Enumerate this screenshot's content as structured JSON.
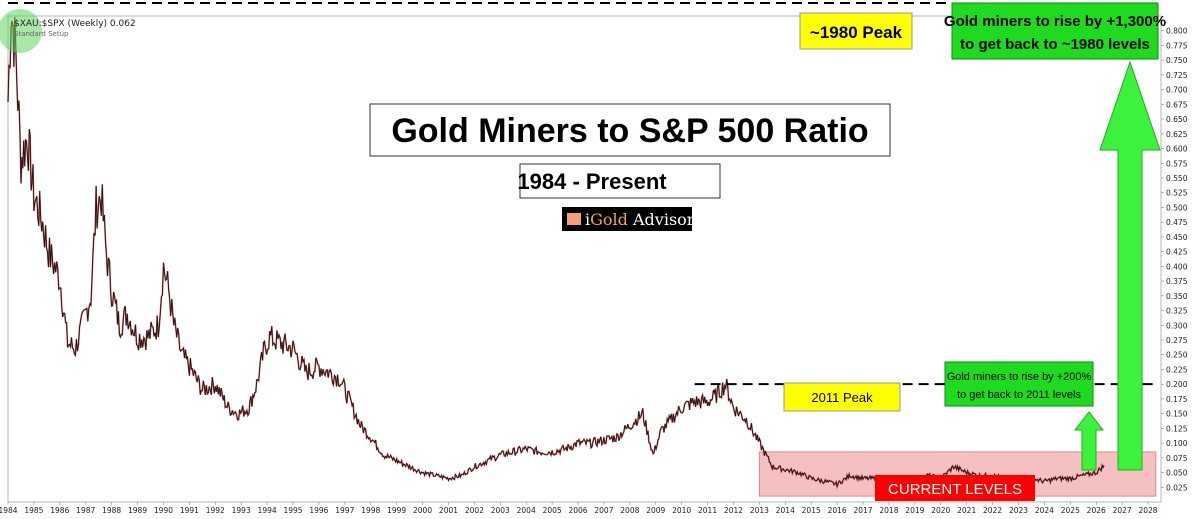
{
  "chart_data": {
    "type": "line",
    "title": "Gold Miners to S&P 500 Ratio",
    "subtitle": "1984 - Present",
    "brand": {
      "prefix": "i",
      "gold": "Gold",
      "rest": " Advisor"
    },
    "legend_label": "$XAU:$SPX (Weekly) 0.062",
    "legend_sub": "Standard Setup",
    "ylim": [
      0,
      0.825
    ],
    "xlim": [
      1984,
      2028.5
    ],
    "y_ticks": [
      "0.025",
      "0.050",
      "0.075",
      "0.100",
      "0.125",
      "0.150",
      "0.175",
      "0.200",
      "0.225",
      "0.250",
      "0.275",
      "0.300",
      "0.325",
      "0.350",
      "0.375",
      "0.400",
      "0.425",
      "0.450",
      "0.475",
      "0.500",
      "0.525",
      "0.550",
      "0.575",
      "0.600",
      "0.625",
      "0.650",
      "0.675",
      "0.700",
      "0.725",
      "0.750",
      "0.775",
      "0.800"
    ],
    "x_ticks": [
      "1984",
      "1985",
      "1986",
      "1987",
      "1988",
      "1989",
      "1990",
      "1991",
      "1992",
      "1993",
      "1994",
      "1995",
      "1996",
      "1997",
      "1998",
      "1999",
      "2000",
      "2001",
      "2002",
      "2003",
      "2004",
      "2005",
      "2006",
      "2007",
      "2008",
      "2009",
      "2010",
      "2011",
      "2012",
      "2013",
      "2014",
      "2015",
      "2016",
      "2017",
      "2018",
      "2019",
      "2020",
      "2021",
      "2022",
      "2023",
      "2024",
      "2025",
      "2026",
      "2027",
      "2028"
    ],
    "series": [
      {
        "x": [
          1984.0,
          1984.12,
          1984.3,
          1984.5,
          1984.75,
          1985.0,
          1985.3,
          1985.6,
          1986.0,
          1986.3,
          1986.6,
          1987.0,
          1987.2,
          1987.4,
          1987.6,
          1987.8,
          1988.0,
          1988.3,
          1988.6,
          1989.0,
          1989.4,
          1989.8,
          1990.0,
          1990.2,
          1990.4,
          1990.7,
          1991.0,
          1991.5,
          1992.0,
          1992.5,
          1992.9,
          1993.3,
          1993.6,
          1993.9,
          1994.1,
          1994.5,
          1995.0,
          1995.5,
          1996.0,
          1996.4,
          1996.8,
          1997.2,
          1997.6,
          1998.0,
          1998.5,
          1999.0,
          1999.5,
          2000.0,
          2000.5,
          2001.0,
          2001.5,
          2002.0,
          2002.5,
          2003.0,
          2003.5,
          2004.0,
          2004.5,
          2005.0,
          2005.5,
          2006.0,
          2006.5,
          2007.0,
          2007.5,
          2008.0,
          2008.5,
          2008.9,
          2009.2,
          2009.6,
          2010.0,
          2010.5,
          2011.0,
          2011.3,
          2011.7,
          2012.0,
          2012.5,
          2013.0,
          2013.5,
          2014.0,
          2014.5,
          2015.0,
          2015.5,
          2016.0,
          2016.5,
          2017.0,
          2017.5,
          2018.0,
          2018.5,
          2019.0,
          2019.5,
          2020.0,
          2020.5,
          2021.0,
          2021.5,
          2022.0,
          2022.5,
          2023.0,
          2023.5,
          2024.0,
          2024.5,
          2025.0,
          2025.5,
          2026.0,
          2026.3
        ],
        "y": [
          0.68,
          0.84,
          0.76,
          0.58,
          0.62,
          0.52,
          0.48,
          0.42,
          0.38,
          0.27,
          0.26,
          0.32,
          0.35,
          0.5,
          0.52,
          0.42,
          0.36,
          0.3,
          0.32,
          0.28,
          0.28,
          0.3,
          0.4,
          0.36,
          0.3,
          0.25,
          0.23,
          0.19,
          0.2,
          0.16,
          0.15,
          0.16,
          0.2,
          0.26,
          0.28,
          0.27,
          0.26,
          0.22,
          0.23,
          0.22,
          0.21,
          0.17,
          0.13,
          0.11,
          0.08,
          0.07,
          0.06,
          0.05,
          0.045,
          0.04,
          0.045,
          0.06,
          0.07,
          0.08,
          0.085,
          0.09,
          0.085,
          0.085,
          0.09,
          0.1,
          0.1,
          0.105,
          0.11,
          0.13,
          0.15,
          0.08,
          0.12,
          0.14,
          0.16,
          0.17,
          0.17,
          0.18,
          0.2,
          0.16,
          0.14,
          0.1,
          0.06,
          0.055,
          0.05,
          0.04,
          0.035,
          0.03,
          0.045,
          0.04,
          0.04,
          0.035,
          0.03,
          0.035,
          0.045,
          0.04,
          0.06,
          0.05,
          0.045,
          0.045,
          0.04,
          0.04,
          0.04,
          0.035,
          0.04,
          0.04,
          0.045,
          0.05,
          0.062
        ]
      }
    ],
    "annotations": {
      "peak_1980_label": "~1980 Peak",
      "peak_1980_value": 0.847,
      "peak_2011_label": "2011 Peak",
      "peak_2011_value": 0.2,
      "rise_1300_label": [
        "Gold miners to rise by +1,300%",
        "to get back to ~1980 levels"
      ],
      "rise_200_label": [
        "Gold miners to rise by +200%",
        "to get back to 2011 levels"
      ],
      "current_label": "CURRENT LEVELS",
      "current_range": [
        2013.0,
        2028.3,
        0.01,
        0.085
      ]
    },
    "colors": {
      "background": "#ffffff",
      "series": "#1a1a1a",
      "series_accent": "#d62828",
      "peak_box": "#ffff00",
      "green_box": "#1fdb1f",
      "green_arrow": "#3df23d",
      "current_zone": "#f4c0c0",
      "current_label_bg": "#ff0000"
    }
  }
}
